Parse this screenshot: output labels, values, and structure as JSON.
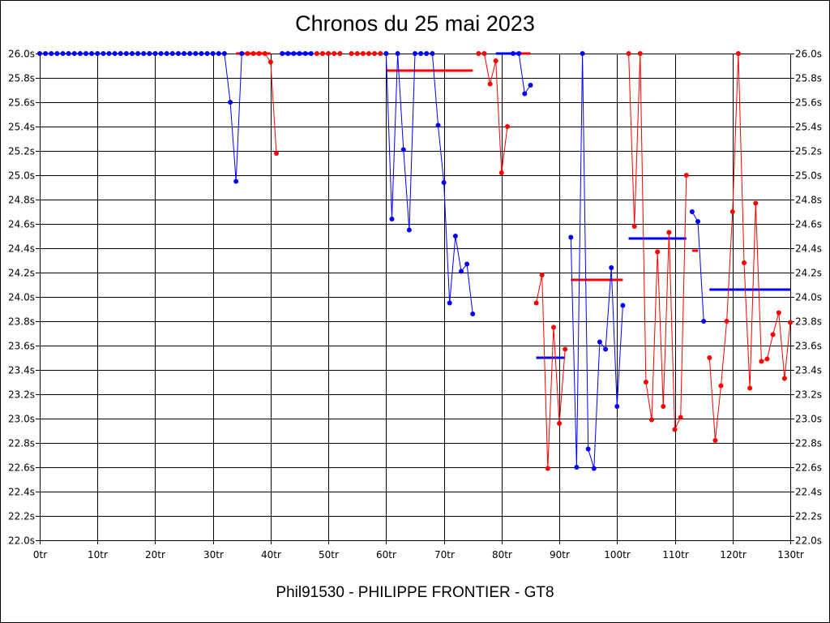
{
  "chart_data": {
    "type": "line",
    "title": "Chronos du 25 mai 2023",
    "footer": "Phil91530 - PHILIPPE FRONTIER - GT8",
    "xlabel": "",
    "ylabel": "",
    "xlim": [
      0,
      130
    ],
    "ylim": [
      22.0,
      26.0
    ],
    "x_ticks": [
      0,
      10,
      20,
      30,
      40,
      50,
      60,
      70,
      80,
      90,
      100,
      110,
      120,
      130
    ],
    "x_tick_labels": [
      "0tr",
      "10tr",
      "20tr",
      "30tr",
      "40tr",
      "50tr",
      "60tr",
      "70tr",
      "80tr",
      "90tr",
      "100tr",
      "110tr",
      "120tr",
      "130tr"
    ],
    "y_ticks": [
      22.0,
      22.2,
      22.4,
      22.6,
      22.8,
      23.0,
      23.2,
      23.4,
      23.6,
      23.8,
      24.0,
      24.2,
      24.4,
      24.6,
      24.8,
      25.0,
      25.2,
      25.4,
      25.6,
      25.8,
      26.0
    ],
    "y_tick_labels": [
      "22.0s",
      "22.2s",
      "22.4s",
      "22.6s",
      "22.8s",
      "23.0s",
      "23.2s",
      "23.4s",
      "23.6s",
      "23.8s",
      "24.0s",
      "24.2s",
      "24.4s",
      "24.6s",
      "24.8s",
      "25.0s",
      "25.2s",
      "25.4s",
      "25.6s",
      "25.8s",
      "26.0s"
    ],
    "grid": true,
    "colors": {
      "blue": "#0000ff",
      "red": "#ff0000"
    },
    "segments": [
      {
        "color": "blue",
        "x": [
          0,
          1,
          2,
          3,
          4,
          5,
          6,
          7,
          8,
          9,
          10,
          11,
          12,
          13,
          14,
          15,
          16,
          17,
          18,
          19,
          20,
          21,
          22,
          23,
          24,
          25,
          26,
          27,
          28,
          29,
          30,
          31,
          32,
          33,
          34,
          35
        ],
        "y": [
          26,
          26,
          26,
          26,
          26,
          26,
          26,
          26,
          26,
          26,
          26,
          26,
          26,
          26,
          26,
          26,
          26,
          26,
          26,
          26,
          26,
          26,
          26,
          26,
          26,
          26,
          26,
          26,
          26,
          26,
          26,
          26,
          26,
          25.6,
          24.95,
          26
        ]
      },
      {
        "color": "red",
        "x": [
          36,
          37,
          38,
          39,
          40,
          41
        ],
        "y": [
          26,
          26,
          26,
          26,
          25.93,
          25.18
        ]
      },
      {
        "color": "blue",
        "x": [
          42,
          43,
          44,
          45,
          46,
          47
        ],
        "y": [
          26,
          26,
          26,
          26,
          26,
          26
        ]
      },
      {
        "color": "red",
        "x": [
          48,
          49,
          50,
          51,
          52
        ],
        "y": [
          26,
          26,
          26,
          26,
          26
        ]
      },
      {
        "color": "red",
        "x": [
          54,
          55,
          56,
          57,
          58,
          59
        ],
        "y": [
          26,
          26,
          26,
          26,
          26,
          26
        ]
      },
      {
        "color": "blue",
        "x": [
          60,
          61,
          62,
          63,
          64,
          65,
          66,
          67,
          68,
          69,
          70,
          71,
          72,
          73,
          74,
          75
        ],
        "y": [
          26,
          24.64,
          26,
          25.21,
          24.55,
          26,
          26,
          26,
          26,
          25.41,
          24.94,
          23.95,
          24.5,
          24.21,
          24.27,
          23.86
        ]
      },
      {
        "color": "red",
        "x": [
          76,
          77,
          78,
          79,
          80,
          81
        ],
        "y": [
          26,
          26,
          25.75,
          25.94,
          25.02,
          25.4
        ]
      },
      {
        "color": "blue",
        "x": [
          82,
          83,
          84,
          85
        ],
        "y": [
          26,
          26,
          25.67,
          25.74
        ]
      },
      {
        "color": "red",
        "x": [
          86,
          87,
          88,
          89,
          90,
          91
        ],
        "y": [
          23.95,
          24.18,
          22.59,
          23.75,
          22.96,
          23.57
        ]
      },
      {
        "color": "blue",
        "x": [
          92,
          93,
          94,
          95,
          96,
          97,
          98,
          99,
          100,
          101
        ],
        "y": [
          24.49,
          22.6,
          26,
          22.75,
          22.59,
          23.63,
          23.57,
          24.24,
          23.1,
          23.93
        ]
      },
      {
        "color": "red",
        "x": [
          102,
          103,
          104,
          105,
          106,
          107,
          108,
          109,
          110,
          111,
          112
        ],
        "y": [
          26,
          24.58,
          26,
          23.3,
          22.99,
          24.37,
          23.1,
          24.53,
          22.91,
          23.01,
          25.0
        ]
      },
      {
        "color": "blue",
        "x": [
          113,
          114,
          115
        ],
        "y": [
          24.7,
          24.62,
          23.8
        ]
      },
      {
        "color": "red",
        "x": [
          116,
          117,
          118,
          119,
          120,
          121,
          122,
          123,
          124,
          125,
          126,
          127,
          128,
          129,
          130
        ],
        "y": [
          23.5,
          22.82,
          23.27,
          23.8,
          24.7,
          26,
          24.28,
          23.25,
          24.77,
          23.47,
          23.49,
          23.69,
          23.87,
          23.33,
          23.79
        ]
      }
    ],
    "average_lines": [
      {
        "color": "red",
        "x": [
          34,
          40
        ],
        "y": 26.0
      },
      {
        "color": "blue",
        "x": [
          42,
          47
        ],
        "y": 26.0
      },
      {
        "color": "red",
        "x": [
          60,
          75
        ],
        "y": 25.86
      },
      {
        "color": "blue",
        "x": [
          79,
          83
        ],
        "y": 26.0
      },
      {
        "color": "red",
        "x": [
          83,
          85
        ],
        "y": 26.0
      },
      {
        "color": "blue",
        "x": [
          86,
          91
        ],
        "y": 23.5
      },
      {
        "color": "red",
        "x": [
          92,
          101
        ],
        "y": 24.14
      },
      {
        "color": "blue",
        "x": [
          102,
          112
        ],
        "y": 24.48
      },
      {
        "color": "red",
        "x": [
          113,
          114
        ],
        "y": 24.38
      },
      {
        "color": "blue",
        "x": [
          116,
          130
        ],
        "y": 24.06
      }
    ]
  }
}
